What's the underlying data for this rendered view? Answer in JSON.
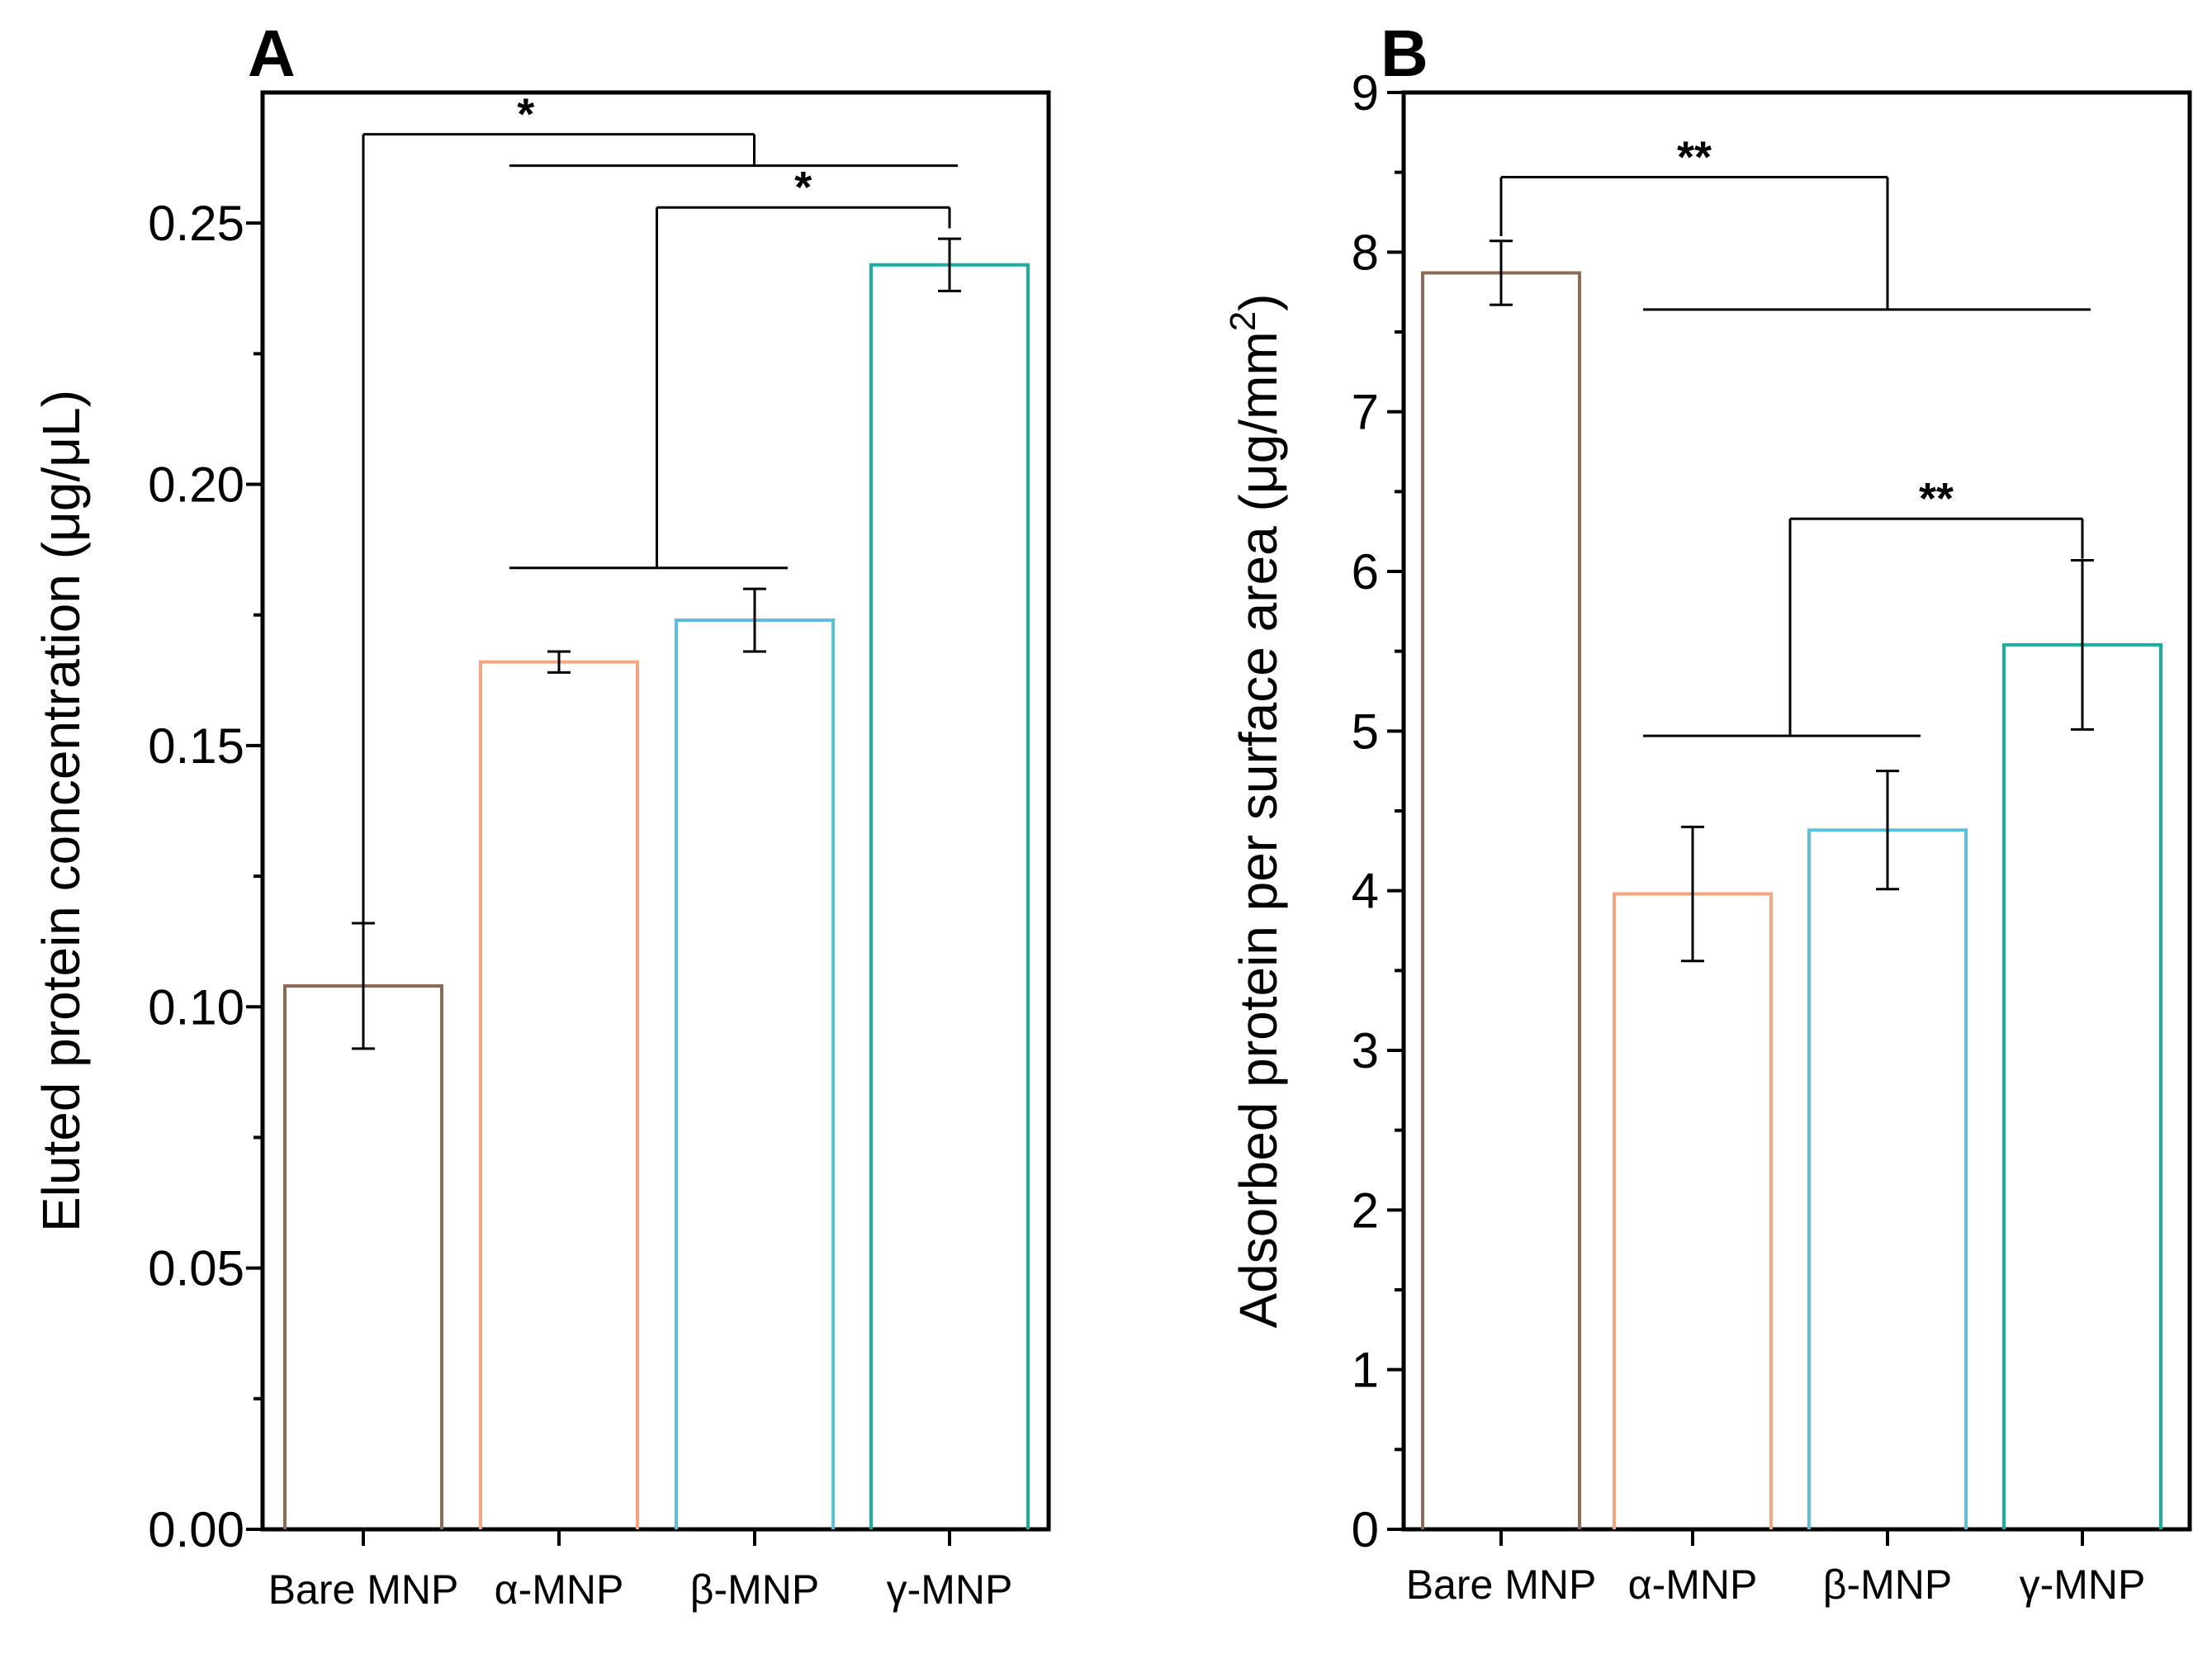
{
  "chart_data": [
    {
      "panel": "A",
      "type": "bar",
      "categories": [
        "Bare MNP",
        "α-MNP",
        "β-MNP",
        "γ-MNP"
      ],
      "values": [
        0.104,
        0.166,
        0.174,
        0.242
      ],
      "errors": [
        0.012,
        0.002,
        0.006,
        0.005
      ],
      "colors": [
        "#8B6B57",
        "#F4A582",
        "#5BC0DE",
        "#1AAE9F"
      ],
      "ylabel": "Eluted protein concentration (μg/μL)",
      "ylim": [
        0,
        0.275
      ],
      "yticks": [
        0.0,
        0.05,
        0.1,
        0.15,
        0.2,
        0.25
      ],
      "ytick_labels": [
        "0.00",
        "0.05",
        "0.10",
        "0.15",
        "0.20",
        "0.25"
      ],
      "minor_ticks": true,
      "significance": [
        {
          "label": "*",
          "left": [
            0
          ],
          "right": [
            1,
            2,
            3
          ],
          "line_y": 0.267,
          "right_y": 0.261
        },
        {
          "label": "*",
          "left": [
            1,
            2
          ],
          "right": [
            3
          ],
          "line_y": 0.253,
          "left_y": 0.184,
          "right_y": 0.249
        }
      ]
    },
    {
      "panel": "B",
      "type": "bar",
      "categories": [
        "Bare MNP",
        "α-MNP",
        "β-MNP",
        "γ-MNP"
      ],
      "values": [
        7.87,
        3.98,
        4.38,
        5.54
      ],
      "errors": [
        0.2,
        0.42,
        0.37,
        0.53
      ],
      "colors": [
        "#8B6B57",
        "#F4A582",
        "#5BC0DE",
        "#1AAE9F"
      ],
      "ylabel": "Adsorbed protein per surface area (μg/mm",
      "ylabel_sup": "2",
      "ylabel_end": ")",
      "ylim": [
        0,
        9
      ],
      "yticks": [
        0,
        1,
        2,
        3,
        4,
        5,
        6,
        7,
        8,
        9
      ],
      "ytick_labels": [
        "0",
        "1",
        "2",
        "3",
        "4",
        "5",
        "6",
        "7",
        "8",
        "9"
      ],
      "minor_ticks": true,
      "significance": [
        {
          "label": "**",
          "left": [
            0
          ],
          "right": [
            1,
            2,
            3
          ],
          "line_y": 8.47,
          "left_y": 8.1,
          "right_y": 7.64
        },
        {
          "label": "**",
          "left": [
            1,
            2
          ],
          "right": [
            3
          ],
          "line_y": 6.33,
          "left_y": 4.97,
          "right_y": 6.08
        }
      ]
    }
  ]
}
